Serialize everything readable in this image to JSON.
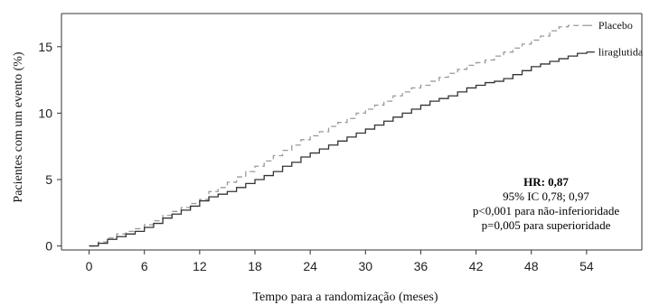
{
  "chart_data": {
    "type": "line",
    "xlabel": "Tempo para a randomização (meses)",
    "ylabel": "Pacientes com um evento (%)",
    "xlim": [
      -3,
      60
    ],
    "ylim": [
      -0.3,
      17.5
    ],
    "x_ticks": [
      0,
      6,
      12,
      18,
      24,
      30,
      36,
      42,
      48,
      54
    ],
    "y_ticks": [
      0,
      5,
      10,
      15
    ],
    "grid": false,
    "series": [
      {
        "name": "Placebo",
        "color": "#9a9a9a",
        "style": "dashed",
        "x": [
          0,
          1,
          2,
          3,
          4,
          5,
          6,
          7,
          8,
          9,
          10,
          11,
          12,
          13,
          14,
          15,
          16,
          17,
          18,
          19,
          20,
          21,
          22,
          23,
          24,
          25,
          26,
          27,
          28,
          29,
          30,
          31,
          32,
          33,
          34,
          35,
          36,
          37,
          38,
          39,
          40,
          41,
          42,
          43,
          44,
          45,
          46,
          47,
          48,
          49,
          50,
          51,
          52,
          54
        ],
        "y": [
          0,
          0.3,
          0.6,
          0.9,
          1.1,
          1.3,
          1.6,
          1.9,
          2.3,
          2.6,
          2.9,
          3.2,
          3.5,
          4.1,
          4.4,
          4.8,
          5.2,
          5.6,
          6.0,
          6.4,
          6.8,
          7.2,
          7.6,
          8.0,
          8.3,
          8.6,
          9.0,
          9.3,
          9.6,
          10.0,
          10.3,
          10.6,
          10.9,
          11.3,
          11.6,
          11.9,
          12.1,
          12.4,
          12.7,
          13.0,
          13.3,
          13.6,
          13.8,
          14.0,
          14.3,
          14.6,
          14.9,
          15.2,
          15.5,
          15.8,
          16.2,
          16.5,
          16.6,
          16.6
        ]
      },
      {
        "name": "liraglutida",
        "color": "#333333",
        "style": "solid",
        "x": [
          0,
          1,
          2,
          3,
          4,
          5,
          6,
          7,
          8,
          9,
          10,
          11,
          12,
          13,
          14,
          15,
          16,
          17,
          18,
          19,
          20,
          21,
          22,
          23,
          24,
          25,
          26,
          27,
          28,
          29,
          30,
          31,
          32,
          33,
          34,
          35,
          36,
          37,
          38,
          39,
          40,
          41,
          42,
          43,
          44,
          45,
          46,
          47,
          48,
          49,
          50,
          51,
          52,
          53,
          54
        ],
        "y": [
          0,
          0.2,
          0.5,
          0.7,
          0.9,
          1.1,
          1.4,
          1.7,
          2.1,
          2.4,
          2.7,
          3.0,
          3.4,
          3.7,
          3.9,
          4.1,
          4.4,
          4.7,
          5.0,
          5.3,
          5.6,
          6.0,
          6.3,
          6.7,
          7.0,
          7.3,
          7.6,
          7.9,
          8.2,
          8.5,
          8.8,
          9.1,
          9.4,
          9.7,
          10.0,
          10.3,
          10.6,
          10.9,
          11.1,
          11.3,
          11.6,
          11.9,
          12.1,
          12.3,
          12.4,
          12.6,
          12.9,
          13.2,
          13.5,
          13.7,
          13.9,
          14.1,
          14.3,
          14.5,
          14.6
        ]
      }
    ]
  },
  "stats": {
    "hr": "HR: 0,87",
    "ci": "95% IC 0,78; 0,97",
    "p_noninferiority": "p<0,001 para não-inferioridade",
    "p_superiority": "p=0,005 para superioridade"
  }
}
